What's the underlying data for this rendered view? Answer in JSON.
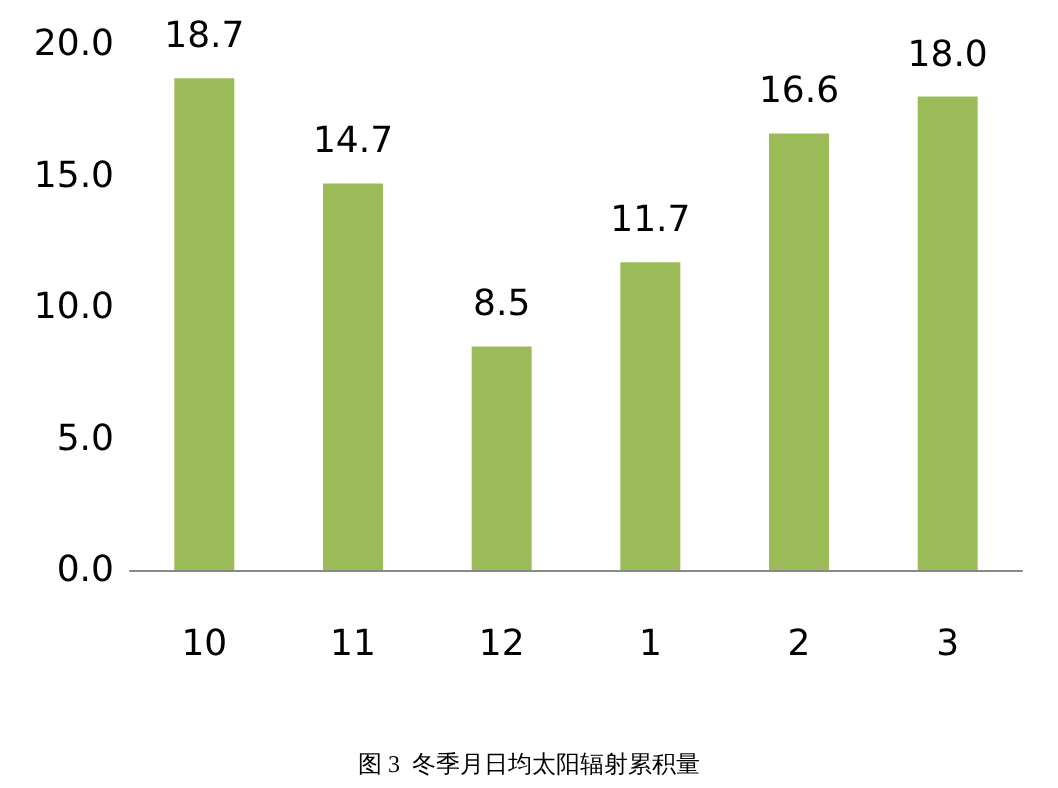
{
  "chart_data": {
    "type": "bar",
    "categories": [
      "10",
      "11",
      "12",
      "1",
      "2",
      "3"
    ],
    "values": [
      18.7,
      14.7,
      8.5,
      11.7,
      16.6,
      18.0
    ],
    "color": "#9bbb59",
    "data_labels": true,
    "value_labels": [
      "18.7",
      "14.7",
      "8.5",
      "11.7",
      "16.6",
      "18.0"
    ],
    "ylim": [
      0,
      20
    ],
    "yticks": [
      {
        "value": 0,
        "label": "0.0"
      },
      {
        "value": 5,
        "label": "5.0"
      },
      {
        "value": 10,
        "label": "10.0"
      },
      {
        "value": 15,
        "label": "15.0"
      },
      {
        "value": 20,
        "label": "20.0"
      }
    ],
    "annotations": [
      "图 3  冬季月日均太阳辐射累积量"
    ]
  }
}
